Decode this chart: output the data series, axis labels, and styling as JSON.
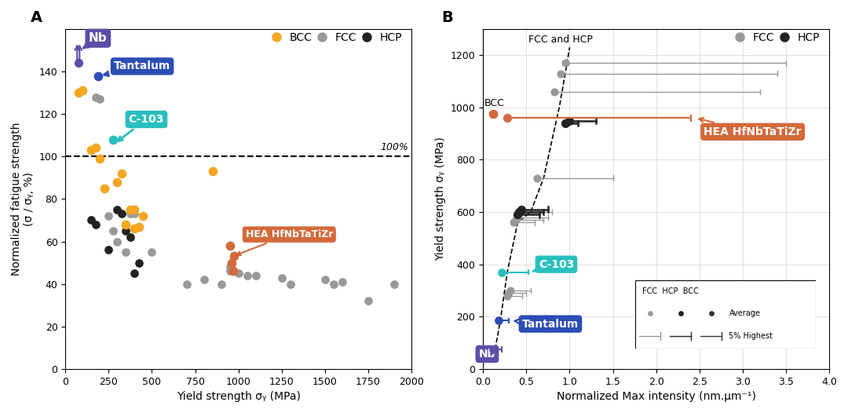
{
  "panel_A": {
    "title": "A",
    "xlabel": "Yield strength σᵧ (MPa)",
    "ylabel": "Normalized fatigue strength\n(σ / σᵧ, %)",
    "xlim": [
      0,
      2000
    ],
    "ylim": [
      0,
      160
    ],
    "yticks": [
      0,
      20,
      40,
      60,
      80,
      100,
      120,
      140
    ],
    "xticks": [
      0,
      250,
      500,
      750,
      1000,
      1250,
      1500,
      1750,
      2000
    ],
    "dashed_y": 100,
    "BCC_points": [
      [
        75,
        130
      ],
      [
        100,
        131
      ],
      [
        150,
        103
      ],
      [
        175,
        104
      ],
      [
        200,
        99
      ],
      [
        225,
        85
      ],
      [
        300,
        88
      ],
      [
        325,
        92
      ],
      [
        350,
        68
      ],
      [
        375,
        75
      ],
      [
        400,
        75
      ],
      [
        400,
        66
      ],
      [
        425,
        67
      ],
      [
        450,
        72
      ],
      [
        850,
        93
      ]
    ],
    "FCC_points": [
      [
        175,
        128
      ],
      [
        200,
        127
      ],
      [
        250,
        72
      ],
      [
        275,
        65
      ],
      [
        300,
        60
      ],
      [
        350,
        55
      ],
      [
        375,
        73
      ],
      [
        400,
        73
      ],
      [
        500,
        55
      ],
      [
        700,
        40
      ],
      [
        800,
        42
      ],
      [
        900,
        40
      ],
      [
        950,
        48
      ],
      [
        950,
        46
      ],
      [
        1000,
        45
      ],
      [
        1050,
        44
      ],
      [
        1100,
        44
      ],
      [
        1250,
        43
      ],
      [
        1300,
        40
      ],
      [
        1500,
        42
      ],
      [
        1550,
        40
      ],
      [
        1600,
        41
      ],
      [
        1750,
        32
      ],
      [
        1900,
        40
      ]
    ],
    "HCP_points": [
      [
        150,
        70
      ],
      [
        175,
        68
      ],
      [
        250,
        56
      ],
      [
        300,
        75
      ],
      [
        325,
        73
      ],
      [
        350,
        65
      ],
      [
        375,
        62
      ],
      [
        400,
        45
      ],
      [
        425,
        50
      ]
    ],
    "Nb_point": [
      75,
      152
    ],
    "Tantalum_point": [
      190,
      138
    ],
    "C103_point": [
      275,
      108
    ],
    "HEA_points": [
      [
        950,
        58
      ],
      [
        960,
        50
      ],
      [
        970,
        46
      ],
      [
        975,
        53
      ]
    ],
    "BCC_color": "#f5a623",
    "FCC_color": "#999999",
    "HCP_color": "#222222",
    "Nb_color": "#5b4ea8",
    "Tantalum_color": "#2b4eb5",
    "C103_color": "#2abfbf",
    "HEA_color": "#d4693b"
  },
  "panel_B": {
    "title": "B",
    "xlabel": "Normalized Max intensity (nm.μm⁻¹)",
    "ylabel": "Yield strength σᵧ (MPa)",
    "xlim": [
      0,
      4.0
    ],
    "ylim": [
      0,
      1300
    ],
    "yticks": [
      0,
      200,
      400,
      600,
      800,
      1000,
      1200
    ],
    "xticks": [
      0.0,
      0.5,
      1.0,
      1.5,
      2.0,
      2.5,
      3.0,
      3.5,
      4.0
    ],
    "fcc_avg_data": [
      [
        0.95,
        1170,
        3.5
      ],
      [
        0.9,
        1130,
        3.4
      ],
      [
        0.82,
        1060,
        3.2
      ],
      [
        0.62,
        730,
        1.5
      ],
      [
        0.42,
        600,
        0.8
      ],
      [
        0.4,
        580,
        0.75
      ],
      [
        0.38,
        570,
        0.7
      ],
      [
        0.35,
        560,
        0.6
      ],
      [
        0.32,
        300,
        0.55
      ],
      [
        0.3,
        290,
        0.5
      ],
      [
        0.28,
        280,
        0.45
      ]
    ],
    "hcp_avg_data": [
      [
        1.0,
        950,
        1.3
      ],
      [
        0.95,
        940,
        1.1
      ],
      [
        0.44,
        610,
        0.75
      ],
      [
        0.42,
        600,
        0.7
      ],
      [
        0.4,
        590,
        0.65
      ]
    ],
    "dashed_x": [
      0.14,
      0.2,
      0.28,
      0.4,
      0.55,
      0.7,
      0.88,
      0.95,
      1.0
    ],
    "dashed_y_vals": [
      75,
      185,
      370,
      560,
      600,
      730,
      1000,
      1130,
      1230
    ],
    "Nb_avg": [
      0.12,
      75
    ],
    "Nb_5pct": [
      0.22,
      75
    ],
    "Tantalum_avg": [
      0.18,
      185
    ],
    "Tantalum_5pct": [
      0.3,
      185
    ],
    "C103_avg": [
      0.22,
      370
    ],
    "C103_5pct": [
      0.52,
      370
    ],
    "HEA_avg": [
      0.28,
      960
    ],
    "HEA_5pct": [
      2.4,
      960
    ],
    "BCC_point": [
      0.12,
      975
    ],
    "FCC_color": "#999999",
    "HCP_color": "#222222",
    "BCC_color": "#d4693b",
    "Nb_color": "#5b4ea8",
    "Tantalum_color": "#2b4eb5",
    "C103_color": "#2abfbf",
    "HEA_color": "#d4693b"
  }
}
